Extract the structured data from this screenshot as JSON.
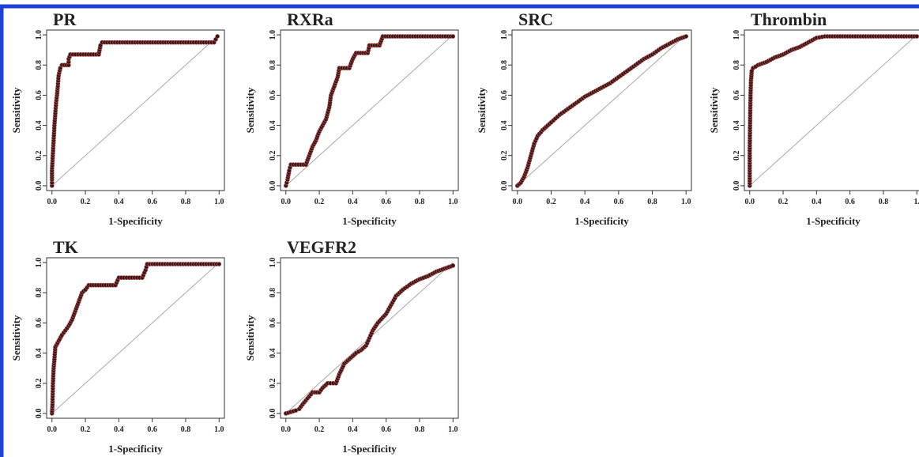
{
  "colors": {
    "page_border": "#1f3fd6",
    "marker_fill": "#3a1616",
    "marker_line": "#c05a5a",
    "diagonal": "#a8a8a8",
    "axis": "#333333"
  },
  "chart_data": [
    {
      "type": "line",
      "title": "PR",
      "xlabel": "1-Specificity",
      "ylabel": "Sensitivity",
      "xlim": [
        0,
        1
      ],
      "ylim": [
        0,
        1
      ],
      "xticks": [
        "0.0",
        "0.2",
        "0.4",
        "0.6",
        "0.8",
        "1.0"
      ],
      "yticks": [
        "0.0",
        "0.2",
        "0.4",
        "0.6",
        "0.8",
        "1.0"
      ],
      "reference_line": "diagonal",
      "grid": false,
      "points": [
        [
          0,
          0
        ],
        [
          0,
          0.04
        ],
        [
          0,
          0.1
        ],
        [
          0.005,
          0.2
        ],
        [
          0.01,
          0.3
        ],
        [
          0.015,
          0.4
        ],
        [
          0.02,
          0.48
        ],
        [
          0.025,
          0.55
        ],
        [
          0.03,
          0.6
        ],
        [
          0.035,
          0.66
        ],
        [
          0.04,
          0.73
        ],
        [
          0.05,
          0.78
        ],
        [
          0.06,
          0.8
        ],
        [
          0.1,
          0.8
        ],
        [
          0.1,
          0.84
        ],
        [
          0.11,
          0.87
        ],
        [
          0.28,
          0.87
        ],
        [
          0.29,
          0.93
        ],
        [
          0.3,
          0.95
        ],
        [
          0.97,
          0.95
        ],
        [
          0.98,
          0.97
        ],
        [
          0.99,
          0.99
        ]
      ]
    },
    {
      "type": "line",
      "title": "RXRa",
      "xlabel": "1-Specificity",
      "ylabel": "Sensitivity",
      "xlim": [
        0,
        1
      ],
      "ylim": [
        0,
        1
      ],
      "xticks": [
        "0.0",
        "0.2",
        "0.4",
        "0.6",
        "0.8",
        "1.0"
      ],
      "yticks": [
        "0.0",
        "0.2",
        "0.4",
        "0.6",
        "0.8",
        "1.0"
      ],
      "reference_line": "diagonal",
      "grid": false,
      "points": [
        [
          0,
          0
        ],
        [
          0.01,
          0.04
        ],
        [
          0.02,
          0.1
        ],
        [
          0.03,
          0.14
        ],
        [
          0.12,
          0.14
        ],
        [
          0.14,
          0.2
        ],
        [
          0.16,
          0.26
        ],
        [
          0.18,
          0.3
        ],
        [
          0.2,
          0.36
        ],
        [
          0.22,
          0.4
        ],
        [
          0.24,
          0.44
        ],
        [
          0.26,
          0.52
        ],
        [
          0.27,
          0.6
        ],
        [
          0.29,
          0.66
        ],
        [
          0.31,
          0.72
        ],
        [
          0.32,
          0.78
        ],
        [
          0.38,
          0.78
        ],
        [
          0.4,
          0.84
        ],
        [
          0.42,
          0.88
        ],
        [
          0.49,
          0.88
        ],
        [
          0.5,
          0.93
        ],
        [
          0.56,
          0.93
        ],
        [
          0.58,
          0.99
        ],
        [
          1,
          0.99
        ]
      ]
    },
    {
      "type": "line",
      "title": "SRC",
      "xlabel": "1-Specificity",
      "ylabel": "Sensitivity",
      "xlim": [
        0,
        1
      ],
      "ylim": [
        0,
        1
      ],
      "xticks": [
        "0.0",
        "0.2",
        "0.4",
        "0.6",
        "0.8",
        "1.0"
      ],
      "yticks": [
        "0.0",
        "0.2",
        "0.4",
        "0.6",
        "0.8",
        "1.0"
      ],
      "reference_line": "diagonal",
      "grid": false,
      "points": [
        [
          0,
          0
        ],
        [
          0.02,
          0.02
        ],
        [
          0.04,
          0.06
        ],
        [
          0.06,
          0.12
        ],
        [
          0.08,
          0.2
        ],
        [
          0.1,
          0.28
        ],
        [
          0.12,
          0.33
        ],
        [
          0.15,
          0.37
        ],
        [
          0.18,
          0.4
        ],
        [
          0.2,
          0.42
        ],
        [
          0.25,
          0.47
        ],
        [
          0.3,
          0.51
        ],
        [
          0.35,
          0.55
        ],
        [
          0.4,
          0.59
        ],
        [
          0.45,
          0.62
        ],
        [
          0.5,
          0.65
        ],
        [
          0.55,
          0.68
        ],
        [
          0.6,
          0.72
        ],
        [
          0.65,
          0.76
        ],
        [
          0.7,
          0.8
        ],
        [
          0.75,
          0.84
        ],
        [
          0.8,
          0.87
        ],
        [
          0.85,
          0.91
        ],
        [
          0.9,
          0.94
        ],
        [
          0.95,
          0.97
        ],
        [
          1,
          0.99
        ]
      ]
    },
    {
      "type": "line",
      "title": "Thrombin",
      "xlabel": "1-Specificity",
      "ylabel": "Sensitivity",
      "xlim": [
        0,
        1
      ],
      "ylim": [
        0,
        1
      ],
      "xticks": [
        "0.0",
        "0.2",
        "0.4",
        "0.6",
        "0.8",
        "1."
      ],
      "yticks": [
        "0.0",
        "0.2",
        "0.4",
        "0.6",
        "0.8",
        "1.0"
      ],
      "reference_line": "diagonal",
      "grid": false,
      "points": [
        [
          0,
          0
        ],
        [
          0,
          0.2
        ],
        [
          0.002,
          0.4
        ],
        [
          0.005,
          0.6
        ],
        [
          0.008,
          0.7
        ],
        [
          0.012,
          0.76
        ],
        [
          0.02,
          0.78
        ],
        [
          0.05,
          0.8
        ],
        [
          0.1,
          0.82
        ],
        [
          0.15,
          0.85
        ],
        [
          0.2,
          0.87
        ],
        [
          0.25,
          0.9
        ],
        [
          0.3,
          0.92
        ],
        [
          0.35,
          0.95
        ],
        [
          0.4,
          0.98
        ],
        [
          0.45,
          0.99
        ],
        [
          1,
          0.99
        ]
      ]
    },
    {
      "type": "line",
      "title": "TK",
      "xlabel": "1-Specificity",
      "ylabel": "Sensitivity",
      "xlim": [
        0,
        1
      ],
      "ylim": [
        0,
        1
      ],
      "xticks": [
        "0.0",
        "0.2",
        "0.4",
        "0.6",
        "0.8",
        "1.0"
      ],
      "yticks": [
        "0.0",
        "0.2",
        "0.4",
        "0.6",
        "0.8",
        "1.0"
      ],
      "reference_line": "diagonal",
      "grid": false,
      "points": [
        [
          0,
          0
        ],
        [
          0.003,
          0.06
        ],
        [
          0.006,
          0.2
        ],
        [
          0.01,
          0.3
        ],
        [
          0.015,
          0.36
        ],
        [
          0.02,
          0.44
        ],
        [
          0.04,
          0.48
        ],
        [
          0.06,
          0.52
        ],
        [
          0.08,
          0.55
        ],
        [
          0.1,
          0.58
        ],
        [
          0.12,
          0.62
        ],
        [
          0.14,
          0.68
        ],
        [
          0.16,
          0.74
        ],
        [
          0.18,
          0.8
        ],
        [
          0.2,
          0.82
        ],
        [
          0.22,
          0.85
        ],
        [
          0.38,
          0.85
        ],
        [
          0.4,
          0.9
        ],
        [
          0.54,
          0.9
        ],
        [
          0.56,
          0.95
        ],
        [
          0.57,
          0.99
        ],
        [
          1,
          0.99
        ]
      ]
    },
    {
      "type": "line",
      "title": "VEGFR2",
      "xlabel": "1-Specificity",
      "ylabel": "Sensitivity",
      "xlim": [
        0,
        1
      ],
      "ylim": [
        0,
        1
      ],
      "xticks": [
        "0.0",
        "0.2",
        "0.4",
        "0.6",
        "0.8",
        "1.0"
      ],
      "yticks": [
        "0.0",
        "0.2",
        "0.4",
        "0.6",
        "0.8",
        "1.0"
      ],
      "reference_line": "diagonal",
      "grid": false,
      "points": [
        [
          0,
          0
        ],
        [
          0.03,
          0.01
        ],
        [
          0.06,
          0.02
        ],
        [
          0.08,
          0.03
        ],
        [
          0.1,
          0.06
        ],
        [
          0.13,
          0.1
        ],
        [
          0.16,
          0.14
        ],
        [
          0.2,
          0.14
        ],
        [
          0.22,
          0.17
        ],
        [
          0.25,
          0.2
        ],
        [
          0.3,
          0.2
        ],
        [
          0.32,
          0.26
        ],
        [
          0.35,
          0.33
        ],
        [
          0.38,
          0.36
        ],
        [
          0.42,
          0.4
        ],
        [
          0.45,
          0.42
        ],
        [
          0.48,
          0.45
        ],
        [
          0.5,
          0.5
        ],
        [
          0.52,
          0.55
        ],
        [
          0.55,
          0.6
        ],
        [
          0.6,
          0.66
        ],
        [
          0.63,
          0.72
        ],
        [
          0.66,
          0.78
        ],
        [
          0.7,
          0.82
        ],
        [
          0.75,
          0.86
        ],
        [
          0.8,
          0.89
        ],
        [
          0.85,
          0.91
        ],
        [
          0.9,
          0.94
        ],
        [
          0.95,
          0.96
        ],
        [
          1,
          0.98
        ]
      ]
    }
  ]
}
